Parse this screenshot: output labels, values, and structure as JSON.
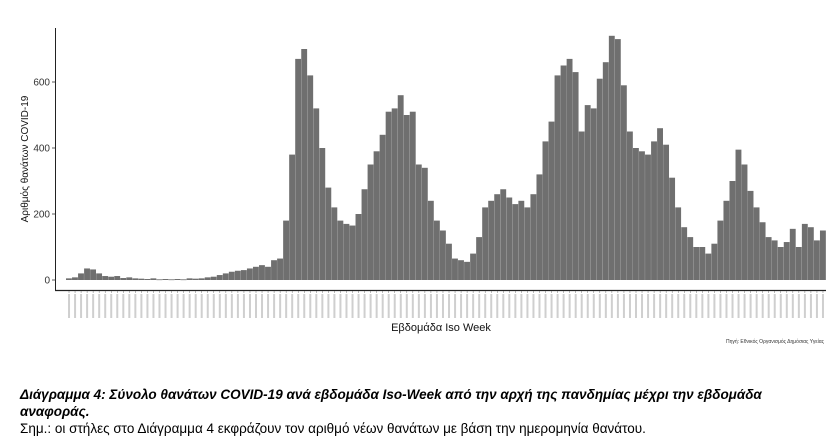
{
  "chart_data": {
    "type": "bar",
    "ylabel": "Αριθμός θανάτων COVID-19",
    "xlabel": "Εβδομάδα Iso Week",
    "source": "Πηγή: Εθνικός Οργανισμός Δημόσιας Υγείας",
    "yticks": [
      0,
      200,
      400,
      600
    ],
    "ylim": [
      -25,
      770
    ],
    "grid": false,
    "values": [
      5,
      8,
      20,
      35,
      32,
      20,
      12,
      10,
      12,
      6,
      8,
      5,
      4,
      3,
      5,
      2,
      3,
      2,
      3,
      2,
      5,
      4,
      5,
      8,
      10,
      15,
      20,
      25,
      28,
      30,
      35,
      40,
      45,
      40,
      60,
      65,
      180,
      380,
      670,
      700,
      620,
      520,
      400,
      280,
      220,
      180,
      170,
      165,
      200,
      275,
      350,
      390,
      440,
      510,
      520,
      560,
      500,
      510,
      350,
      340,
      240,
      180,
      150,
      110,
      65,
      60,
      55,
      80,
      130,
      220,
      240,
      260,
      275,
      250,
      230,
      240,
      220,
      260,
      320,
      420,
      480,
      620,
      650,
      670,
      630,
      450,
      530,
      520,
      610,
      660,
      740,
      730,
      590,
      450,
      400,
      390,
      380,
      420,
      460,
      410,
      310,
      220,
      160,
      130,
      100,
      100,
      80,
      110,
      180,
      240,
      300,
      395,
      350,
      270,
      220,
      175,
      130,
      120,
      100,
      115,
      155,
      100,
      170,
      160,
      120,
      150
    ]
  },
  "caption": {
    "title": "Διάγραμμα 4: Σύνολο θανάτων COVID-19 ανά εβδομάδα Iso-Week από την αρχή της πανδημίας μέχρι την εβδομάδα αναφοράς.",
    "note": "Σημ.: οι στήλες στο Διάγραμμα 4 εκφράζουν τον αριθμό νέων θανάτων με βάση την ημερομηνία θανάτου."
  }
}
